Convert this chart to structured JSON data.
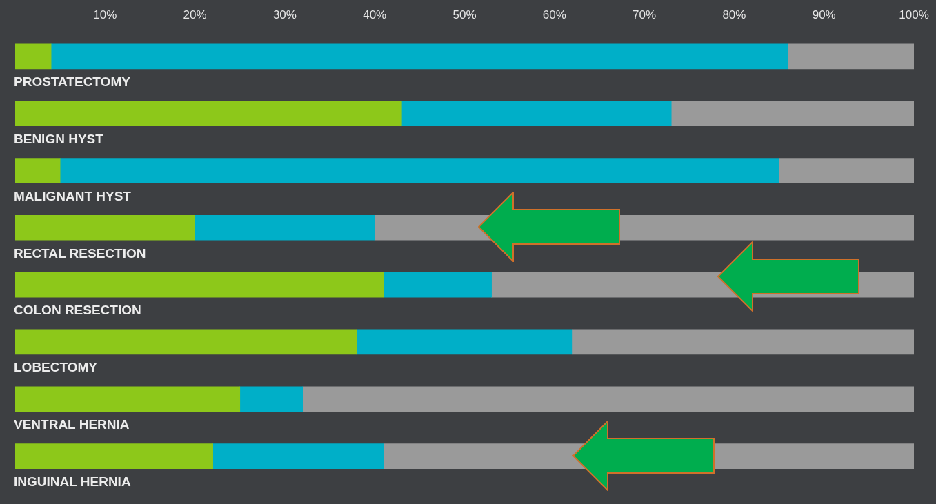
{
  "chart_data": {
    "type": "bar",
    "orientation": "horizontal",
    "stacked": true,
    "categories": [
      "PROSTATECTOMY",
      "BENIGN HYST",
      "MALIGNANT HYST",
      "RECTAL RESECTION",
      "COLON RESECTION",
      "LOBECTOMY",
      "VENTRAL HERNIA",
      "INGUINAL HERNIA"
    ],
    "series": [
      {
        "color": "#8dc81a",
        "values": [
          4,
          43,
          5,
          20,
          41,
          38,
          25,
          22
        ]
      },
      {
        "color": "#00afc8",
        "values": [
          82,
          30,
          80,
          20,
          12,
          24,
          7,
          19
        ]
      },
      {
        "color": "#9a9a9a",
        "values": [
          14,
          27,
          15,
          60,
          47,
          38,
          68,
          59
        ]
      }
    ],
    "xlim": [
      0,
      100
    ],
    "xticks": [
      {
        "value": 10,
        "label": "10%"
      },
      {
        "value": 20,
        "label": "20%"
      },
      {
        "value": 30,
        "label": "30%"
      },
      {
        "value": 40,
        "label": "40%"
      },
      {
        "value": 50,
        "label": "50%"
      },
      {
        "value": 60,
        "label": "60%"
      },
      {
        "value": 70,
        "label": "70%"
      },
      {
        "value": 80,
        "label": "80%"
      },
      {
        "value": 90,
        "label": "90%"
      },
      {
        "value": 100,
        "label": "100%"
      }
    ],
    "grid": false,
    "legend": false
  }
}
